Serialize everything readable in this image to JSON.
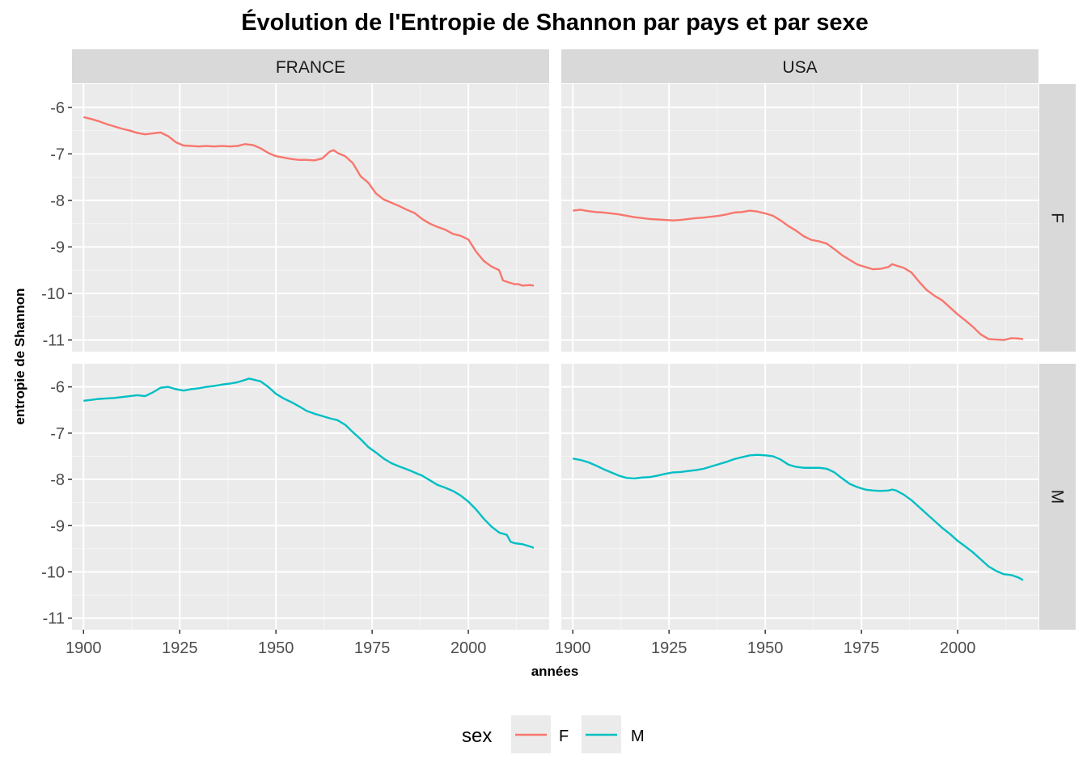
{
  "chart_data": {
    "type": "line",
    "title": "Évolution de l'Entropie de Shannon par pays et par sexe",
    "xlabel": "années",
    "ylabel": "entropie de Shannon",
    "xlim": [
      1897,
      2021
    ],
    "ylim": [
      -11.25,
      -5.5
    ],
    "x_ticks": [
      1900,
      1925,
      1950,
      1975,
      2000
    ],
    "y_ticks": [
      -6,
      -7,
      -8,
      -9,
      -10,
      -11
    ],
    "y_tick_labels": [
      "-6",
      "-7",
      "-8",
      "-9",
      "-10",
      "-11"
    ],
    "x_tick_labels": [
      "1900",
      "1925",
      "1950",
      "1975",
      "2000"
    ],
    "grid": true,
    "facet_columns": [
      "FRANCE",
      "USA"
    ],
    "facet_rows": [
      "F",
      "M"
    ],
    "legend": {
      "title": "sex",
      "position": "bottom",
      "entries": [
        {
          "name": "F",
          "color": "#F8766D"
        },
        {
          "name": "M",
          "color": "#00BFC4"
        }
      ]
    },
    "panels": [
      {
        "country": "FRANCE",
        "sex": "F",
        "color": "#F8766D",
        "x": [
          1900,
          1902,
          1904,
          1906,
          1908,
          1910,
          1912,
          1914,
          1916,
          1918,
          1920,
          1922,
          1924,
          1926,
          1928,
          1930,
          1932,
          1934,
          1936,
          1938,
          1940,
          1942,
          1944,
          1946,
          1948,
          1950,
          1952,
          1954,
          1956,
          1958,
          1960,
          1962,
          1964,
          1965,
          1966,
          1968,
          1970,
          1972,
          1974,
          1976,
          1978,
          1980,
          1982,
          1984,
          1986,
          1988,
          1990,
          1992,
          1994,
          1996,
          1998,
          2000,
          2002,
          2004,
          2006,
          2008,
          2009,
          2010,
          2012,
          2013,
          2014,
          2016,
          2017
        ],
        "y": [
          -6.21,
          -6.25,
          -6.3,
          -6.36,
          -6.41,
          -6.46,
          -6.5,
          -6.55,
          -6.58,
          -6.56,
          -6.54,
          -6.62,
          -6.75,
          -6.82,
          -6.83,
          -6.84,
          -6.83,
          -6.84,
          -6.83,
          -6.84,
          -6.83,
          -6.79,
          -6.81,
          -6.88,
          -6.98,
          -7.05,
          -7.08,
          -7.11,
          -7.13,
          -7.13,
          -7.14,
          -7.1,
          -6.95,
          -6.92,
          -6.98,
          -7.05,
          -7.2,
          -7.48,
          -7.62,
          -7.85,
          -7.98,
          -8.05,
          -8.12,
          -8.2,
          -8.27,
          -8.4,
          -8.5,
          -8.57,
          -8.63,
          -8.72,
          -8.76,
          -8.84,
          -9.1,
          -9.3,
          -9.42,
          -9.5,
          -9.72,
          -9.75,
          -9.8,
          -9.8,
          -9.83,
          -9.82,
          -9.83
        ]
      },
      {
        "country": "USA",
        "sex": "F",
        "color": "#F8766D",
        "x": [
          1900,
          1902,
          1904,
          1906,
          1908,
          1910,
          1912,
          1914,
          1916,
          1918,
          1920,
          1922,
          1924,
          1926,
          1928,
          1930,
          1932,
          1934,
          1936,
          1938,
          1940,
          1942,
          1944,
          1946,
          1948,
          1950,
          1952,
          1954,
          1956,
          1958,
          1960,
          1962,
          1964,
          1966,
          1968,
          1970,
          1972,
          1974,
          1976,
          1978,
          1980,
          1982,
          1983,
          1984,
          1986,
          1988,
          1990,
          1992,
          1994,
          1996,
          1998,
          2000,
          2002,
          2004,
          2006,
          2008,
          2010,
          2012,
          2014,
          2016,
          2017
        ],
        "y": [
          -8.22,
          -8.2,
          -8.23,
          -8.25,
          -8.26,
          -8.28,
          -8.3,
          -8.33,
          -8.36,
          -8.38,
          -8.4,
          -8.41,
          -8.42,
          -8.43,
          -8.42,
          -8.4,
          -8.38,
          -8.37,
          -8.35,
          -8.33,
          -8.3,
          -8.26,
          -8.25,
          -8.22,
          -8.24,
          -8.28,
          -8.33,
          -8.43,
          -8.55,
          -8.65,
          -8.77,
          -8.85,
          -8.88,
          -8.93,
          -9.05,
          -9.18,
          -9.28,
          -9.38,
          -9.43,
          -9.48,
          -9.47,
          -9.43,
          -9.37,
          -9.4,
          -9.45,
          -9.55,
          -9.75,
          -9.93,
          -10.05,
          -10.15,
          -10.3,
          -10.45,
          -10.58,
          -10.72,
          -10.88,
          -10.98,
          -10.99,
          -11.0,
          -10.96,
          -10.97,
          -10.98
        ]
      },
      {
        "country": "FRANCE",
        "sex": "M",
        "color": "#00BFC4",
        "x": [
          1900,
          1902,
          1904,
          1906,
          1908,
          1910,
          1912,
          1914,
          1916,
          1918,
          1920,
          1922,
          1924,
          1926,
          1928,
          1930,
          1932,
          1934,
          1936,
          1938,
          1940,
          1942,
          1943,
          1944,
          1946,
          1948,
          1950,
          1952,
          1954,
          1956,
          1958,
          1960,
          1962,
          1964,
          1966,
          1968,
          1970,
          1972,
          1974,
          1976,
          1978,
          1980,
          1982,
          1984,
          1986,
          1988,
          1990,
          1992,
          1994,
          1996,
          1998,
          2000,
          2002,
          2004,
          2006,
          2008,
          2010,
          2011,
          2012,
          2014,
          2016,
          2017
        ],
        "y": [
          -6.3,
          -6.28,
          -6.26,
          -6.25,
          -6.24,
          -6.22,
          -6.2,
          -6.18,
          -6.2,
          -6.12,
          -6.02,
          -6.0,
          -6.05,
          -6.08,
          -6.05,
          -6.03,
          -6.0,
          -5.98,
          -5.95,
          -5.93,
          -5.9,
          -5.85,
          -5.82,
          -5.84,
          -5.88,
          -6.0,
          -6.15,
          -6.25,
          -6.33,
          -6.42,
          -6.52,
          -6.58,
          -6.63,
          -6.68,
          -6.72,
          -6.82,
          -6.98,
          -7.13,
          -7.3,
          -7.42,
          -7.55,
          -7.65,
          -7.72,
          -7.78,
          -7.85,
          -7.92,
          -8.02,
          -8.12,
          -8.18,
          -8.25,
          -8.35,
          -8.48,
          -8.65,
          -8.85,
          -9.02,
          -9.15,
          -9.2,
          -9.35,
          -9.38,
          -9.4,
          -9.45,
          -9.48
        ]
      },
      {
        "country": "USA",
        "sex": "M",
        "color": "#00BFC4",
        "x": [
          1900,
          1902,
          1904,
          1906,
          1908,
          1910,
          1912,
          1914,
          1916,
          1918,
          1920,
          1922,
          1924,
          1926,
          1928,
          1930,
          1932,
          1934,
          1936,
          1938,
          1940,
          1942,
          1944,
          1946,
          1948,
          1950,
          1952,
          1954,
          1956,
          1958,
          1960,
          1962,
          1964,
          1966,
          1968,
          1970,
          1972,
          1974,
          1976,
          1978,
          1980,
          1982,
          1983,
          1984,
          1986,
          1988,
          1990,
          1992,
          1994,
          1996,
          1998,
          2000,
          2002,
          2004,
          2006,
          2008,
          2010,
          2012,
          2014,
          2016,
          2017
        ],
        "y": [
          -7.55,
          -7.58,
          -7.63,
          -7.7,
          -7.78,
          -7.85,
          -7.92,
          -7.97,
          -7.98,
          -7.96,
          -7.95,
          -7.92,
          -7.88,
          -7.85,
          -7.84,
          -7.82,
          -7.8,
          -7.77,
          -7.72,
          -7.67,
          -7.62,
          -7.56,
          -7.52,
          -7.48,
          -7.47,
          -7.48,
          -7.5,
          -7.57,
          -7.68,
          -7.73,
          -7.75,
          -7.75,
          -7.75,
          -7.77,
          -7.85,
          -7.98,
          -8.1,
          -8.17,
          -8.22,
          -8.24,
          -8.25,
          -8.24,
          -8.22,
          -8.24,
          -8.33,
          -8.45,
          -8.6,
          -8.75,
          -8.9,
          -9.05,
          -9.18,
          -9.33,
          -9.45,
          -9.58,
          -9.73,
          -9.88,
          -9.98,
          -10.05,
          -10.07,
          -10.13,
          -10.18
        ]
      }
    ]
  }
}
